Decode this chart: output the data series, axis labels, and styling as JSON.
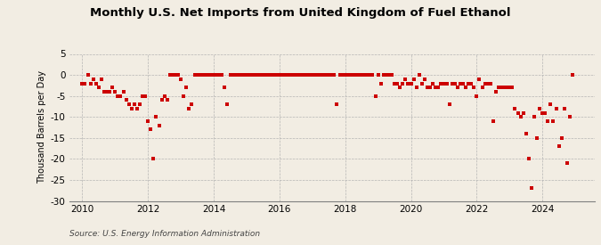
{
  "title": "Monthly U.S. Net Imports from United Kingdom of Fuel Ethanol",
  "ylabel": "Thousand Barrels per Day",
  "source": "Source: U.S. Energy Information Administration",
  "ylim": [
    -30,
    5
  ],
  "yticks": [
    5,
    0,
    -5,
    -10,
    -15,
    -20,
    -25,
    -30
  ],
  "xlim": [
    2009.6,
    2025.6
  ],
  "xticks": [
    2010,
    2012,
    2014,
    2016,
    2018,
    2020,
    2022,
    2024
  ],
  "background_color": "#f2ede3",
  "dot_color": "#cc0000",
  "dot_size": 5,
  "data": [
    [
      2010.0,
      -2
    ],
    [
      2010.083,
      -2
    ],
    [
      2010.167,
      0
    ],
    [
      2010.25,
      -2
    ],
    [
      2010.333,
      -1
    ],
    [
      2010.417,
      -2
    ],
    [
      2010.5,
      -3
    ],
    [
      2010.583,
      -1
    ],
    [
      2010.667,
      -4
    ],
    [
      2010.75,
      -4
    ],
    [
      2010.833,
      -4
    ],
    [
      2010.917,
      -3
    ],
    [
      2011.0,
      -4
    ],
    [
      2011.083,
      -5
    ],
    [
      2011.167,
      -5
    ],
    [
      2011.25,
      -4
    ],
    [
      2011.333,
      -6
    ],
    [
      2011.417,
      -7
    ],
    [
      2011.5,
      -8
    ],
    [
      2011.583,
      -7
    ],
    [
      2011.667,
      -8
    ],
    [
      2011.75,
      -7
    ],
    [
      2011.833,
      -5
    ],
    [
      2011.917,
      -5
    ],
    [
      2012.0,
      -11
    ],
    [
      2012.083,
      -13
    ],
    [
      2012.167,
      -20
    ],
    [
      2012.25,
      -10
    ],
    [
      2012.333,
      -12
    ],
    [
      2012.417,
      -6
    ],
    [
      2012.5,
      -5
    ],
    [
      2012.583,
      -6
    ],
    [
      2012.667,
      0
    ],
    [
      2012.75,
      0
    ],
    [
      2012.833,
      0
    ],
    [
      2012.917,
      0
    ],
    [
      2013.0,
      -1
    ],
    [
      2013.083,
      -5
    ],
    [
      2013.167,
      -3
    ],
    [
      2013.25,
      -8
    ],
    [
      2013.333,
      -7
    ],
    [
      2013.417,
      0
    ],
    [
      2013.5,
      0
    ],
    [
      2013.583,
      0
    ],
    [
      2013.667,
      0
    ],
    [
      2013.75,
      0
    ],
    [
      2013.833,
      0
    ],
    [
      2013.917,
      0
    ],
    [
      2014.0,
      0
    ],
    [
      2014.083,
      0
    ],
    [
      2014.167,
      0
    ],
    [
      2014.25,
      0
    ],
    [
      2014.333,
      -3
    ],
    [
      2014.417,
      -7
    ],
    [
      2014.5,
      0
    ],
    [
      2014.583,
      0
    ],
    [
      2014.667,
      0
    ],
    [
      2014.75,
      0
    ],
    [
      2014.833,
      0
    ],
    [
      2014.917,
      0
    ],
    [
      2015.0,
      0
    ],
    [
      2015.083,
      0
    ],
    [
      2015.167,
      0
    ],
    [
      2015.25,
      0
    ],
    [
      2015.333,
      0
    ],
    [
      2015.417,
      0
    ],
    [
      2015.5,
      0
    ],
    [
      2015.583,
      0
    ],
    [
      2015.667,
      0
    ],
    [
      2015.75,
      0
    ],
    [
      2015.833,
      0
    ],
    [
      2015.917,
      0
    ],
    [
      2016.0,
      0
    ],
    [
      2016.083,
      0
    ],
    [
      2016.167,
      0
    ],
    [
      2016.25,
      0
    ],
    [
      2016.333,
      0
    ],
    [
      2016.417,
      0
    ],
    [
      2016.5,
      0
    ],
    [
      2016.583,
      0
    ],
    [
      2016.667,
      0
    ],
    [
      2016.75,
      0
    ],
    [
      2016.833,
      0
    ],
    [
      2016.917,
      0
    ],
    [
      2017.0,
      0
    ],
    [
      2017.083,
      0
    ],
    [
      2017.167,
      0
    ],
    [
      2017.25,
      0
    ],
    [
      2017.333,
      0
    ],
    [
      2017.417,
      0
    ],
    [
      2017.5,
      0
    ],
    [
      2017.583,
      0
    ],
    [
      2017.667,
      0
    ],
    [
      2017.75,
      -7
    ],
    [
      2017.833,
      0
    ],
    [
      2017.917,
      0
    ],
    [
      2018.0,
      0
    ],
    [
      2018.083,
      0
    ],
    [
      2018.167,
      0
    ],
    [
      2018.25,
      0
    ],
    [
      2018.333,
      0
    ],
    [
      2018.417,
      0
    ],
    [
      2018.5,
      0
    ],
    [
      2018.583,
      0
    ],
    [
      2018.667,
      0
    ],
    [
      2018.75,
      0
    ],
    [
      2018.833,
      0
    ],
    [
      2018.917,
      -5
    ],
    [
      2019.0,
      0
    ],
    [
      2019.083,
      -2
    ],
    [
      2019.167,
      0
    ],
    [
      2019.25,
      0
    ],
    [
      2019.333,
      0
    ],
    [
      2019.417,
      0
    ],
    [
      2019.5,
      -2
    ],
    [
      2019.583,
      -2
    ],
    [
      2019.667,
      -3
    ],
    [
      2019.75,
      -2
    ],
    [
      2019.833,
      -1
    ],
    [
      2019.917,
      -2
    ],
    [
      2020.0,
      -2
    ],
    [
      2020.083,
      -1
    ],
    [
      2020.167,
      -3
    ],
    [
      2020.25,
      0
    ],
    [
      2020.333,
      -2
    ],
    [
      2020.417,
      -1
    ],
    [
      2020.5,
      -3
    ],
    [
      2020.583,
      -3
    ],
    [
      2020.667,
      -2
    ],
    [
      2020.75,
      -3
    ],
    [
      2020.833,
      -3
    ],
    [
      2020.917,
      -2
    ],
    [
      2021.0,
      -2
    ],
    [
      2021.083,
      -2
    ],
    [
      2021.167,
      -7
    ],
    [
      2021.25,
      -2
    ],
    [
      2021.333,
      -2
    ],
    [
      2021.417,
      -3
    ],
    [
      2021.5,
      -2
    ],
    [
      2021.583,
      -2
    ],
    [
      2021.667,
      -3
    ],
    [
      2021.75,
      -2
    ],
    [
      2021.833,
      -2
    ],
    [
      2021.917,
      -3
    ],
    [
      2022.0,
      -5
    ],
    [
      2022.083,
      -1
    ],
    [
      2022.167,
      -3
    ],
    [
      2022.25,
      -2
    ],
    [
      2022.333,
      -2
    ],
    [
      2022.417,
      -2
    ],
    [
      2022.5,
      -11
    ],
    [
      2022.583,
      -4
    ],
    [
      2022.667,
      -3
    ],
    [
      2022.75,
      -3
    ],
    [
      2022.833,
      -3
    ],
    [
      2022.917,
      -3
    ],
    [
      2023.0,
      -3
    ],
    [
      2023.083,
      -3
    ],
    [
      2023.167,
      -8
    ],
    [
      2023.25,
      -9
    ],
    [
      2023.333,
      -10
    ],
    [
      2023.417,
      -9
    ],
    [
      2023.5,
      -14
    ],
    [
      2023.583,
      -20
    ],
    [
      2023.667,
      -27
    ],
    [
      2023.75,
      -10
    ],
    [
      2023.833,
      -15
    ],
    [
      2023.917,
      -8
    ],
    [
      2024.0,
      -9
    ],
    [
      2024.083,
      -9
    ],
    [
      2024.167,
      -11
    ],
    [
      2024.25,
      -7
    ],
    [
      2024.333,
      -11
    ],
    [
      2024.417,
      -8
    ],
    [
      2024.5,
      -17
    ],
    [
      2024.583,
      -15
    ],
    [
      2024.667,
      -8
    ],
    [
      2024.75,
      -21
    ],
    [
      2024.833,
      -10
    ],
    [
      2024.917,
      0
    ]
  ]
}
